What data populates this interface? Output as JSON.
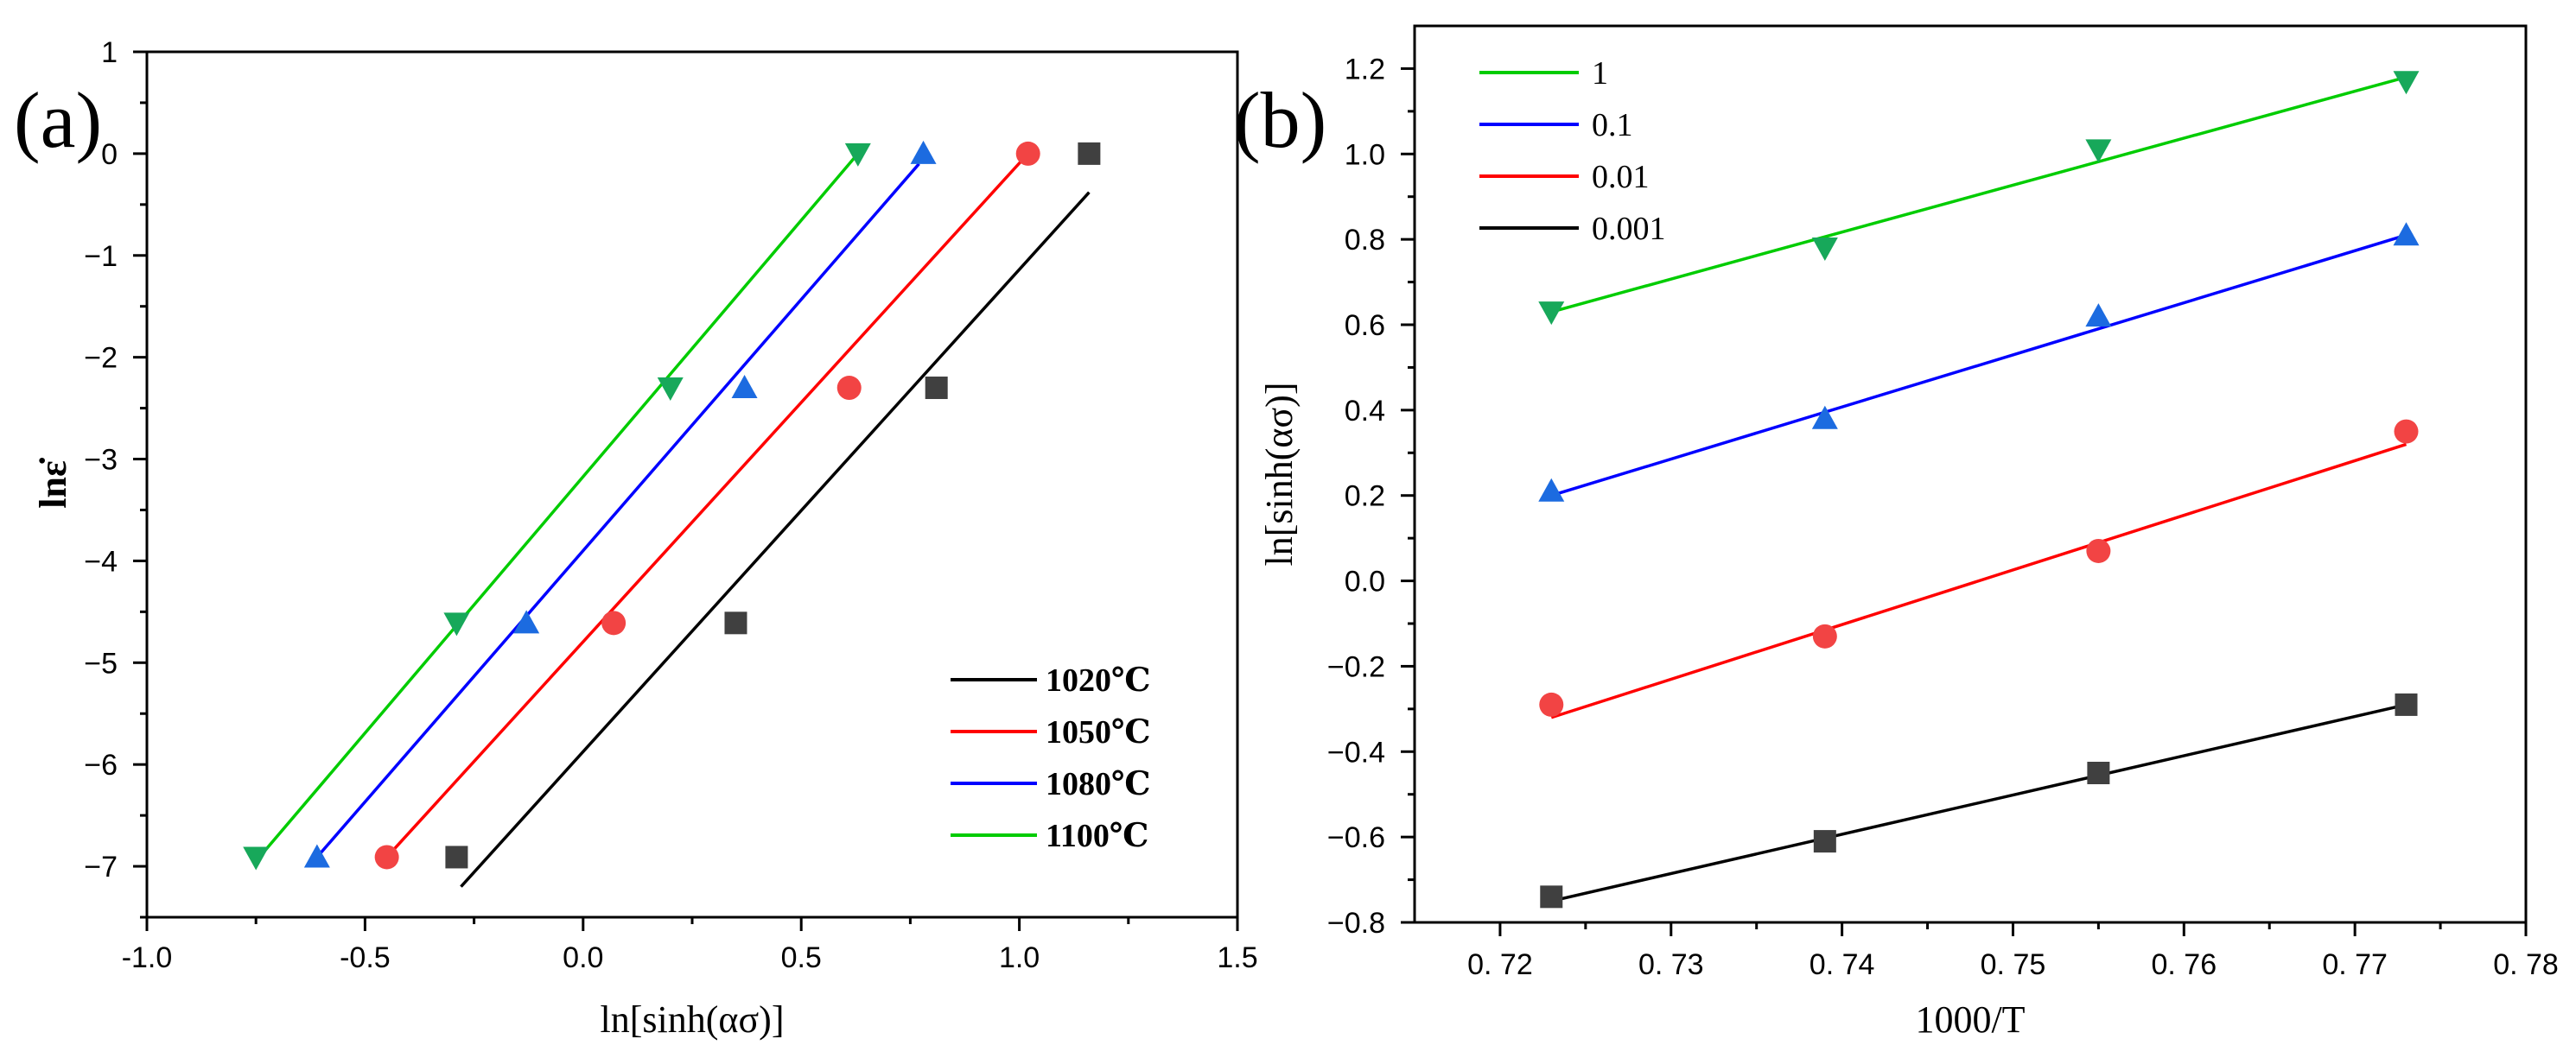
{
  "chart_data": [
    {
      "panel_label": "(a)",
      "type": "scatter",
      "title": "",
      "xlabel": "ln[sinh(ασ)]",
      "ylabel": "lnε̇",
      "xlim": [
        -1.0,
        1.5
      ],
      "ylim": [
        -7.5,
        1.0
      ],
      "xticks": [
        -1.0,
        -0.5,
        0.0,
        0.5,
        1.0,
        1.5
      ],
      "xtick_labels": [
        "-1.0",
        "-0.5",
        "0.0",
        "0.5",
        "1.0",
        "1.5"
      ],
      "yticks": [
        -7,
        -6,
        -5,
        -4,
        -3,
        -2,
        -1,
        0,
        1
      ],
      "ytick_labels": [
        "−7",
        "−6",
        "−5",
        "−4",
        "−3",
        "−2",
        "−1",
        "0",
        "1"
      ],
      "grid": false,
      "legend_position": "bottom-right",
      "series": [
        {
          "name": "1020℃",
          "line_color": "#000000",
          "marker": "square",
          "marker_color": "#404040",
          "x": [
            -0.29,
            0.35,
            0.81,
            1.16
          ],
          "y": [
            -6.91,
            -4.61,
            -2.3,
            0.0
          ],
          "fit_x": [
            -0.28,
            1.16
          ],
          "fit_y": [
            -7.2,
            -0.38
          ]
        },
        {
          "name": "1050℃",
          "line_color": "#ff0000",
          "marker": "circle",
          "marker_color": "#f24444",
          "x": [
            -0.45,
            0.07,
            0.61,
            1.02
          ],
          "y": [
            -6.91,
            -4.61,
            -2.3,
            0.0
          ],
          "fit_x": [
            -0.45,
            1.02
          ],
          "fit_y": [
            -6.91,
            0.0
          ]
        },
        {
          "name": "1080℃",
          "line_color": "#0000ff",
          "marker": "triangle-up",
          "marker_color": "#1c6be0",
          "x": [
            -0.61,
            -0.13,
            0.37,
            0.78
          ],
          "y": [
            -6.91,
            -4.61,
            -2.3,
            0.0
          ],
          "fit_x": [
            -0.61,
            0.77
          ],
          "fit_y": [
            -6.91,
            -0.1
          ]
        },
        {
          "name": "1100℃",
          "line_color": "#00cc00",
          "marker": "triangle-down",
          "marker_color": "#17a85a",
          "x": [
            -0.75,
            -0.29,
            0.2,
            0.63
          ],
          "y": [
            -6.91,
            -4.61,
            -2.3,
            0.0
          ],
          "fit_x": [
            -0.75,
            0.63
          ],
          "fit_y": [
            -6.95,
            0.0
          ]
        }
      ]
    },
    {
      "panel_label": "(b)",
      "type": "scatter",
      "title": "",
      "xlabel": "1000/T",
      "ylabel": "ln[sinh(ασ)]",
      "xlim": [
        0.715,
        0.78
      ],
      "ylim": [
        -0.8,
        1.3
      ],
      "xticks": [
        0.72,
        0.73,
        0.74,
        0.75,
        0.76,
        0.77,
        0.78
      ],
      "xtick_labels": [
        "0. 72",
        "0. 73",
        "0. 74",
        "0. 75",
        "0. 76",
        "0. 77",
        "0. 78"
      ],
      "yticks": [
        -0.8,
        -0.6,
        -0.4,
        -0.2,
        0.0,
        0.2,
        0.4,
        0.6,
        0.8,
        1.0,
        1.2
      ],
      "ytick_labels": [
        "−0.8",
        "−0.6",
        "−0.4",
        "−0.2",
        "0.0",
        "0.2",
        "0.4",
        "0.6",
        "0.8",
        "1.0",
        "1.2"
      ],
      "grid": false,
      "legend_position": "top-left",
      "series": [
        {
          "name": "1",
          "line_color": "#00cc00",
          "marker": "triangle-down",
          "marker_color": "#17a85a",
          "x": [
            0.723,
            0.739,
            0.755,
            0.773
          ],
          "y": [
            0.63,
            0.78,
            1.01,
            1.17
          ],
          "fit_x": [
            0.723,
            0.773
          ],
          "fit_y": [
            0.63,
            1.18
          ]
        },
        {
          "name": "0.1",
          "line_color": "#0000ff",
          "marker": "triangle-up",
          "marker_color": "#1c6be0",
          "x": [
            0.723,
            0.739,
            0.755,
            0.773
          ],
          "y": [
            0.21,
            0.38,
            0.62,
            0.81
          ],
          "fit_x": [
            0.723,
            0.773
          ],
          "fit_y": [
            0.2,
            0.81
          ]
        },
        {
          "name": "0.01",
          "line_color": "#ff0000",
          "marker": "circle",
          "marker_color": "#f24444",
          "x": [
            0.723,
            0.739,
            0.755,
            0.773
          ],
          "y": [
            -0.29,
            -0.13,
            0.07,
            0.35
          ],
          "fit_x": [
            0.723,
            0.773
          ],
          "fit_y": [
            -0.32,
            0.32
          ]
        },
        {
          "name": "0.001",
          "line_color": "#000000",
          "marker": "square",
          "marker_color": "#404040",
          "x": [
            0.723,
            0.739,
            0.755,
            0.773
          ],
          "y": [
            -0.74,
            -0.61,
            -0.45,
            -0.29
          ],
          "fit_x": [
            0.723,
            0.773
          ],
          "fit_y": [
            -0.75,
            -0.29
          ]
        }
      ]
    }
  ]
}
